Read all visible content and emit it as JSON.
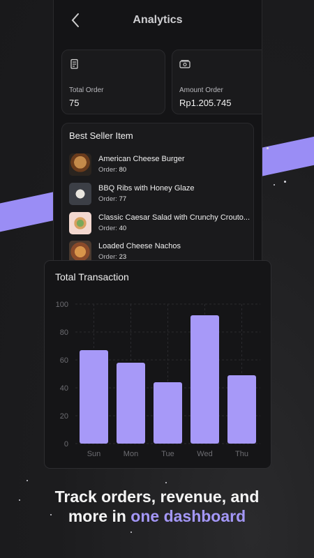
{
  "header": {
    "title": "Analytics"
  },
  "stats": [
    {
      "label": "Total Order",
      "value": "75",
      "icon": "receipt-icon"
    },
    {
      "label": "Amount Order",
      "value": "Rp1.205.745",
      "icon": "money-icon"
    }
  ],
  "best_seller": {
    "title": "Best Seller Item",
    "order_prefix": "Order:",
    "items": [
      {
        "name": "American Cheese Burger",
        "orders": "80"
      },
      {
        "name": "BBQ Ribs with Honey Glaze",
        "orders": "77"
      },
      {
        "name": "Classic Caesar Salad with Crunchy Crouto...",
        "orders": "40"
      },
      {
        "name": "Loaded Cheese Nachos",
        "orders": "23"
      }
    ]
  },
  "chart_data": {
    "type": "bar",
    "title": "Total Transaction",
    "categories": [
      "Sun",
      "Mon",
      "Tue",
      "Wed",
      "Thu"
    ],
    "values": [
      67,
      58,
      44,
      92,
      49
    ],
    "ylim": [
      0,
      100
    ],
    "yticks": [
      0,
      20,
      40,
      60,
      80,
      100
    ],
    "grid": true,
    "bar_color": "#a799f8"
  },
  "tagline": {
    "line1": "Track orders, revenue, and",
    "line2_prefix": "more in ",
    "line2_accent": "one dashboard"
  },
  "colors": {
    "accent": "#a497f7",
    "background": "#1b1b1d"
  }
}
